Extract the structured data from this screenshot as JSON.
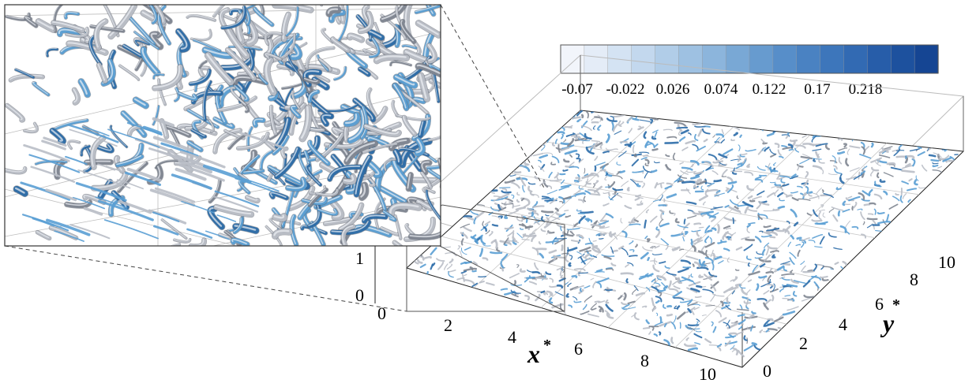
{
  "figure": {
    "colorbar": {
      "tick_labels": [
        "-0.07",
        "-0.022",
        "0.026",
        "0.074",
        "0.122",
        "0.17",
        "0.218"
      ],
      "colors": [
        "#f2f5fb",
        "#e4ecf7",
        "#d4e3f3",
        "#c3d8ee",
        "#b1cde8",
        "#9ec1e2",
        "#8cb5dc",
        "#79a8d5",
        "#679bcf",
        "#578ec9",
        "#4a82c2",
        "#3d76bb",
        "#326ab3",
        "#275da9",
        "#1d519e",
        "#154593"
      ]
    },
    "axes": {
      "x_label": "x",
      "x_label_sup": "*",
      "y_label": "y",
      "y_label_sup": "*",
      "x_ticks": [
        "0",
        "2",
        "4",
        "6",
        "8",
        "10"
      ],
      "y_ticks": [
        "0",
        "2",
        "4",
        "6",
        "8",
        "10"
      ],
      "z_ticks": [
        "0",
        "1"
      ]
    },
    "structure_colors": {
      "silver": "#b9bec6",
      "silver_dark": "#7f8691",
      "blue": "#5a9fd4",
      "blue_dark": "#2b6ca8"
    }
  }
}
